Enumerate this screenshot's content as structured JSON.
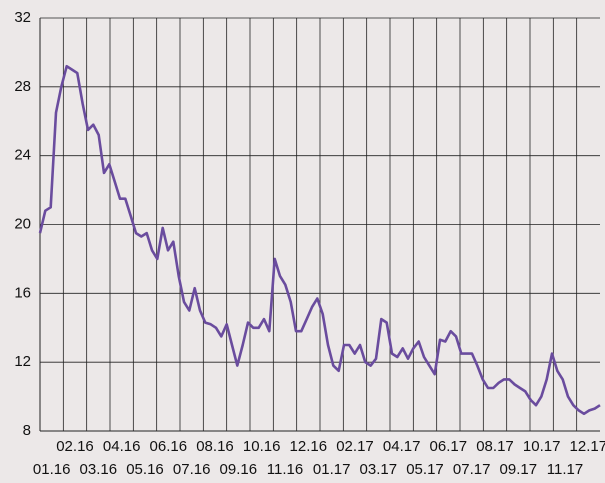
{
  "chart_data": {
    "type": "line",
    "xticks": [
      "01.16",
      "02.16",
      "03.16",
      "04.16",
      "05.16",
      "06.16",
      "07.16",
      "08.16",
      "09.16",
      "10.16",
      "11.16",
      "12.16",
      "01.17",
      "02.17",
      "03.17",
      "04.17",
      "05.17",
      "06.17",
      "07.17",
      "08.17",
      "09.17",
      "10.17",
      "11.17",
      "12.17"
    ],
    "series": [
      {
        "color": "#6a4c9e",
        "values": [
          19.5,
          20.8,
          21,
          26.5,
          28,
          29.2,
          29,
          28.8,
          27,
          25.5,
          25.8,
          25.2,
          23,
          23.5,
          22.5,
          21.5,
          21.5,
          20.5,
          19.5,
          19.3,
          19.5,
          18.5,
          18,
          19.8,
          18.5,
          19,
          17,
          15.5,
          15,
          16.3,
          15,
          14.3,
          14.2,
          14,
          13.5,
          14.2,
          13,
          11.8,
          13,
          14.3,
          14,
          14,
          14.5,
          13.8,
          18,
          17,
          16.5,
          15.5,
          13.8,
          13.8,
          14.5,
          15.2,
          15.7,
          14.8,
          13,
          11.8,
          11.5,
          13,
          13,
          12.5,
          13,
          12,
          11.8,
          12.2,
          14.5,
          14.3,
          12.5,
          12.3,
          12.8,
          12.2,
          12.8,
          13.2,
          12.3,
          11.8,
          11.3,
          13.3,
          13.2,
          13.8,
          13.5,
          12.5,
          12.5,
          12.5,
          11.8,
          11,
          10.5,
          10.5,
          10.8,
          11,
          11,
          10.7,
          10.5,
          10.3,
          9.8,
          9.5,
          10,
          11,
          12.5,
          11.5,
          11,
          10,
          9.5,
          9.2,
          9,
          9.2,
          9.3,
          9.5
        ]
      }
    ],
    "ylim": [
      8,
      32
    ],
    "yticks": [
      8,
      12,
      16,
      20,
      24,
      28,
      32
    ],
    "grid": true
  }
}
